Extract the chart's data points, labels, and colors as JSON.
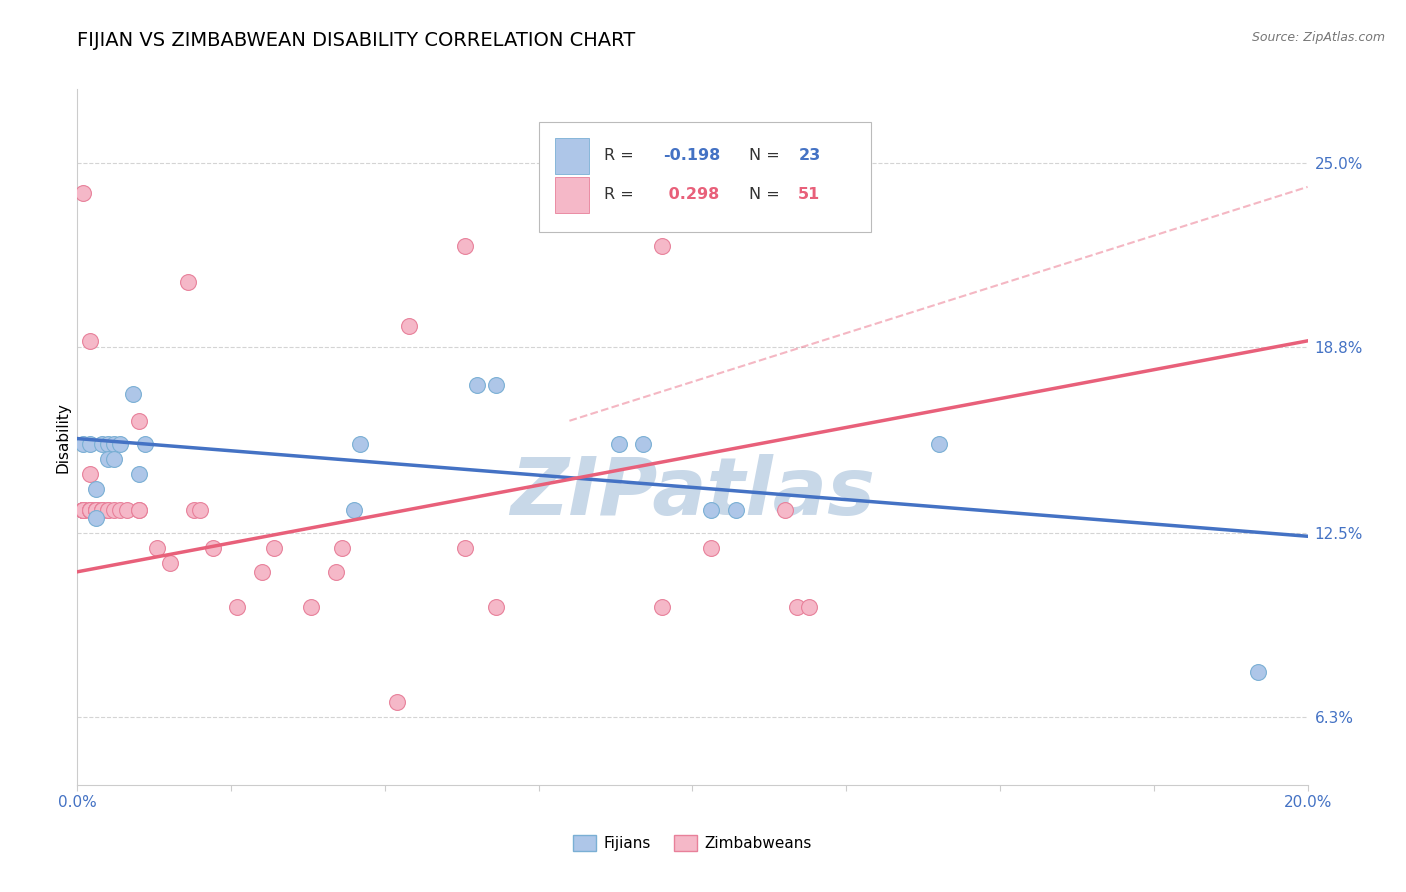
{
  "title": "FIJIAN VS ZIMBABWEAN DISABILITY CORRELATION CHART",
  "source": "Source: ZipAtlas.com",
  "ylabel": "Disability",
  "xlim": [
    0.0,
    0.2
  ],
  "ylim": [
    0.04,
    0.275
  ],
  "ytick_values": [
    0.063,
    0.125,
    0.188,
    0.25
  ],
  "ytick_labels": [
    "6.3%",
    "12.5%",
    "18.8%",
    "25.0%"
  ],
  "fijian_color": "#aec6e8",
  "fijian_edge_color": "#7aafd4",
  "zimbabwean_color": "#f5b8c8",
  "zimbabwean_edge_color": "#e8809a",
  "fijian_line_color": "#4472c4",
  "zimbabwean_line_color": "#e8607a",
  "fijian_x": [
    0.001,
    0.002,
    0.003,
    0.003,
    0.004,
    0.005,
    0.005,
    0.006,
    0.006,
    0.007,
    0.009,
    0.01,
    0.011,
    0.045,
    0.046,
    0.065,
    0.068,
    0.088,
    0.092,
    0.103,
    0.107,
    0.14,
    0.192
  ],
  "fijian_y": [
    0.155,
    0.155,
    0.14,
    0.13,
    0.155,
    0.155,
    0.15,
    0.155,
    0.15,
    0.155,
    0.172,
    0.145,
    0.155,
    0.133,
    0.155,
    0.175,
    0.175,
    0.155,
    0.155,
    0.133,
    0.133,
    0.155,
    0.078
  ],
  "zimbabwean_x": [
    0.001,
    0.001,
    0.001,
    0.001,
    0.001,
    0.001,
    0.001,
    0.002,
    0.002,
    0.002,
    0.002,
    0.002,
    0.003,
    0.003,
    0.003,
    0.003,
    0.004,
    0.004,
    0.004,
    0.005,
    0.005,
    0.006,
    0.007,
    0.008,
    0.01,
    0.01,
    0.01,
    0.013,
    0.015,
    0.018,
    0.019,
    0.02,
    0.022,
    0.026,
    0.03,
    0.032,
    0.038,
    0.042,
    0.043,
    0.052,
    0.054,
    0.063,
    0.063,
    0.068,
    0.095,
    0.103,
    0.095,
    0.115,
    0.117,
    0.119,
    0.002
  ],
  "zimbabwean_y": [
    0.133,
    0.133,
    0.133,
    0.133,
    0.133,
    0.133,
    0.24,
    0.133,
    0.133,
    0.133,
    0.133,
    0.145,
    0.133,
    0.133,
    0.133,
    0.133,
    0.133,
    0.133,
    0.133,
    0.133,
    0.133,
    0.133,
    0.133,
    0.133,
    0.133,
    0.133,
    0.163,
    0.12,
    0.115,
    0.21,
    0.133,
    0.133,
    0.12,
    0.1,
    0.112,
    0.12,
    0.1,
    0.112,
    0.12,
    0.068,
    0.195,
    0.12,
    0.222,
    0.1,
    0.1,
    0.12,
    0.222,
    0.133,
    0.1,
    0.1,
    0.19
  ],
  "fijian_line_x": [
    0.0,
    0.2
  ],
  "fijian_line_y": [
    0.157,
    0.124
  ],
  "zimbabwean_line_x": [
    0.0,
    0.2
  ],
  "zimbabwean_line_y": [
    0.112,
    0.19
  ],
  "dashed_line_x": [
    0.08,
    0.2
  ],
  "dashed_line_y": [
    0.163,
    0.242
  ],
  "watermark": "ZIPatlas",
  "watermark_color": "#c8d8e8",
  "background_color": "#ffffff",
  "grid_color": "#d0d0d0",
  "title_fontsize": 14,
  "tick_fontsize": 11,
  "ylabel_fontsize": 11,
  "legend_R_fijian": "-0.198",
  "legend_N_fijian": "23",
  "legend_R_zimbabwean": "0.298",
  "legend_N_zimbabwean": "51",
  "marker_size": 130
}
